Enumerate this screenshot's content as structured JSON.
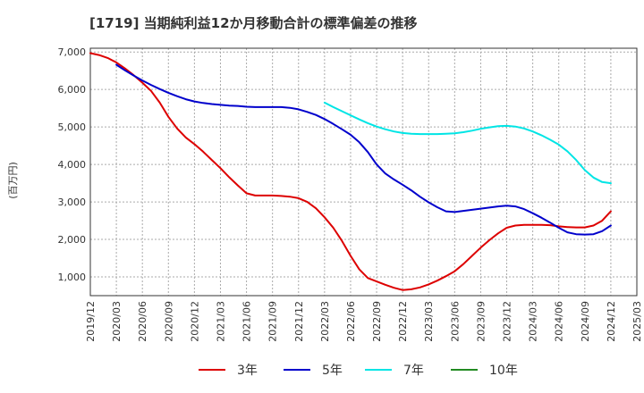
{
  "chart_data": {
    "type": "line",
    "title": "[1719]  当期純利益12か月移動合計の標準偏差の推移",
    "ylabel": "(百万円)",
    "xlabel": "",
    "ylim": [
      500,
      7100
    ],
    "yticks": [
      1000,
      2000,
      3000,
      4000,
      5000,
      6000,
      7000
    ],
    "ytick_labels": [
      "1,000",
      "2,000",
      "3,000",
      "4,000",
      "5,000",
      "6,000",
      "7,000"
    ],
    "xlim": [
      "2019-12",
      "2025-03"
    ],
    "xtick_labels": [
      "2019/12",
      "2020/03",
      "2020/06",
      "2020/09",
      "2020/12",
      "2021/03",
      "2021/06",
      "2021/09",
      "2021/12",
      "2022/03",
      "2022/06",
      "2022/09",
      "2022/12",
      "2023/03",
      "2023/06",
      "2023/09",
      "2023/12",
      "2024/03",
      "2024/06",
      "2024/09",
      "2024/12",
      "2025/03"
    ],
    "grid": true,
    "legend_position": "bottom",
    "series": [
      {
        "name": "3年",
        "color": "#dd0000",
        "x": [
          "2019-12",
          "2020-01",
          "2020-02",
          "2020-03",
          "2020-04",
          "2020-05",
          "2020-06",
          "2020-07",
          "2020-08",
          "2020-09",
          "2020-10",
          "2020-11",
          "2020-12",
          "2021-01",
          "2021-02",
          "2021-03",
          "2021-04",
          "2021-05",
          "2021-06",
          "2021-07",
          "2021-08",
          "2021-09",
          "2021-10",
          "2021-11",
          "2021-12",
          "2022-01",
          "2022-02",
          "2022-03",
          "2022-04",
          "2022-05",
          "2022-06",
          "2022-07",
          "2022-08",
          "2022-09",
          "2022-10",
          "2022-11",
          "2022-12",
          "2023-01",
          "2023-02",
          "2023-03",
          "2023-04",
          "2023-05",
          "2023-06",
          "2023-07",
          "2023-08",
          "2023-09",
          "2023-10",
          "2023-11",
          "2023-12",
          "2024-01",
          "2024-02",
          "2024-03",
          "2024-04",
          "2024-05",
          "2024-06",
          "2024-07",
          "2024-08",
          "2024-09",
          "2024-10",
          "2024-11",
          "2024-12"
        ],
        "values": [
          6970,
          6920,
          6840,
          6720,
          6560,
          6380,
          6180,
          5960,
          5650,
          5270,
          4960,
          4720,
          4540,
          4340,
          4120,
          3900,
          3660,
          3440,
          3230,
          3170,
          3170,
          3170,
          3160,
          3140,
          3100,
          3000,
          2830,
          2590,
          2310,
          1960,
          1560,
          1200,
          970,
          880,
          790,
          710,
          650,
          670,
          720,
          800,
          900,
          1020,
          1150,
          1340,
          1560,
          1780,
          1980,
          2160,
          2310,
          2370,
          2390,
          2390,
          2390,
          2380,
          2350,
          2330,
          2320,
          2320,
          2370,
          2500,
          2750
        ]
      },
      {
        "name": "5年",
        "color": "#0000cc",
        "x": [
          "2020-03",
          "2020-04",
          "2020-05",
          "2020-06",
          "2020-07",
          "2020-08",
          "2020-09",
          "2020-10",
          "2020-11",
          "2020-12",
          "2021-01",
          "2021-02",
          "2021-03",
          "2021-04",
          "2021-05",
          "2021-06",
          "2021-07",
          "2021-08",
          "2021-09",
          "2021-10",
          "2021-11",
          "2021-12",
          "2022-01",
          "2022-02",
          "2022-03",
          "2022-04",
          "2022-05",
          "2022-06",
          "2022-07",
          "2022-08",
          "2022-09",
          "2022-10",
          "2022-11",
          "2022-12",
          "2023-01",
          "2023-02",
          "2023-03",
          "2023-04",
          "2023-05",
          "2023-06",
          "2023-07",
          "2023-08",
          "2023-09",
          "2023-10",
          "2023-11",
          "2023-12",
          "2024-01",
          "2024-02",
          "2024-03",
          "2024-04",
          "2024-05",
          "2024-06",
          "2024-07",
          "2024-08",
          "2024-09",
          "2024-10",
          "2024-11",
          "2024-12"
        ],
        "values": [
          6660,
          6510,
          6370,
          6240,
          6120,
          6010,
          5910,
          5820,
          5740,
          5680,
          5640,
          5610,
          5590,
          5570,
          5560,
          5540,
          5530,
          5530,
          5530,
          5530,
          5510,
          5470,
          5400,
          5320,
          5210,
          5080,
          4940,
          4790,
          4590,
          4330,
          4000,
          3760,
          3600,
          3460,
          3310,
          3140,
          2990,
          2860,
          2750,
          2730,
          2760,
          2790,
          2820,
          2850,
          2880,
          2900,
          2880,
          2810,
          2700,
          2580,
          2450,
          2310,
          2190,
          2140,
          2130,
          2140,
          2220,
          2370
        ]
      },
      {
        "name": "7年",
        "color": "#00e5e5",
        "x": [
          "2022-03",
          "2022-04",
          "2022-05",
          "2022-06",
          "2022-07",
          "2022-08",
          "2022-09",
          "2022-10",
          "2022-11",
          "2022-12",
          "2023-01",
          "2023-02",
          "2023-03",
          "2023-04",
          "2023-05",
          "2023-06",
          "2023-07",
          "2023-08",
          "2023-09",
          "2023-10",
          "2023-11",
          "2023-12",
          "2024-01",
          "2024-02",
          "2024-03",
          "2024-04",
          "2024-05",
          "2024-06",
          "2024-07",
          "2024-08",
          "2024-09",
          "2024-10",
          "2024-11",
          "2024-12"
        ],
        "values": [
          5650,
          5530,
          5420,
          5310,
          5200,
          5100,
          5010,
          4940,
          4880,
          4840,
          4820,
          4810,
          4810,
          4810,
          4820,
          4830,
          4860,
          4900,
          4950,
          4990,
          5020,
          5030,
          5010,
          4960,
          4880,
          4780,
          4660,
          4530,
          4350,
          4120,
          3850,
          3650,
          3530,
          3500
        ]
      },
      {
        "name": "10年",
        "color": "#228b22",
        "x": [],
        "values": []
      }
    ]
  }
}
